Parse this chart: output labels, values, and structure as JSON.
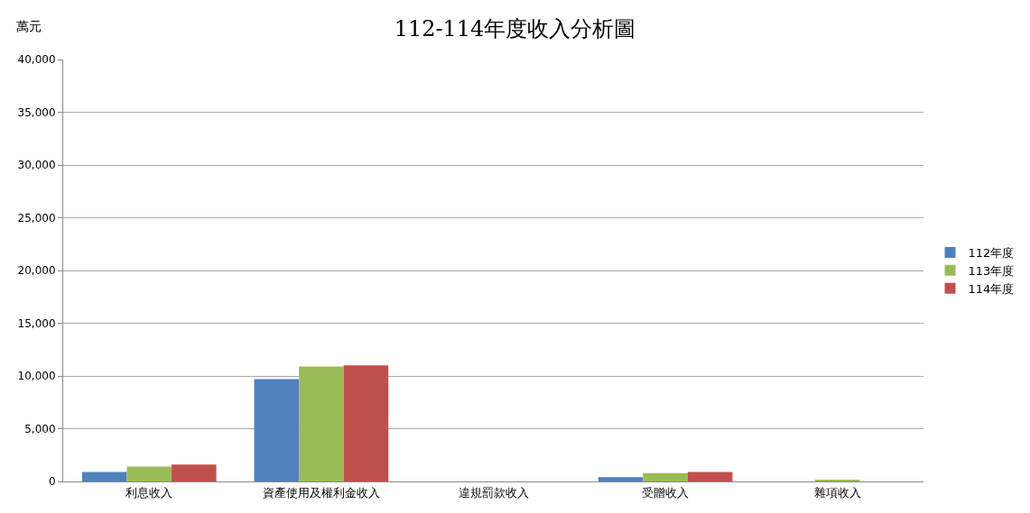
{
  "chart_data": {
    "type": "bar",
    "title": "112-114年度收入分析圖",
    "ylabel": "萬元",
    "categories": [
      "利息收入",
      "資產使用及權利金收入",
      "違規罰款收入",
      "受贈收入",
      "雜項收入"
    ],
    "series": [
      {
        "name": "112年度",
        "color": "#4f81bd",
        "values": [
          900,
          9700,
          0,
          400,
          0
        ]
      },
      {
        "name": "113年度",
        "color": "#9bbb59",
        "values": [
          1400,
          10900,
          0,
          800,
          100
        ]
      },
      {
        "name": "114年度",
        "color": "#c0504d",
        "values": [
          1600,
          11000,
          0,
          900,
          0
        ]
      }
    ],
    "ylim": [
      0,
      40000
    ],
    "yticks": [
      {
        "value": 0,
        "label": "0"
      },
      {
        "value": 5000,
        "label": "5,000"
      },
      {
        "value": 10000,
        "label": "10,000"
      },
      {
        "value": 15000,
        "label": "15,000"
      },
      {
        "value": 20000,
        "label": "20,000"
      },
      {
        "value": 25000,
        "label": "25,000"
      },
      {
        "value": 30000,
        "label": "30,000"
      },
      {
        "value": 35000,
        "label": "35,000"
      },
      {
        "value": 40000,
        "label": "40,000"
      }
    ],
    "grid": "y",
    "legend": "right"
  }
}
